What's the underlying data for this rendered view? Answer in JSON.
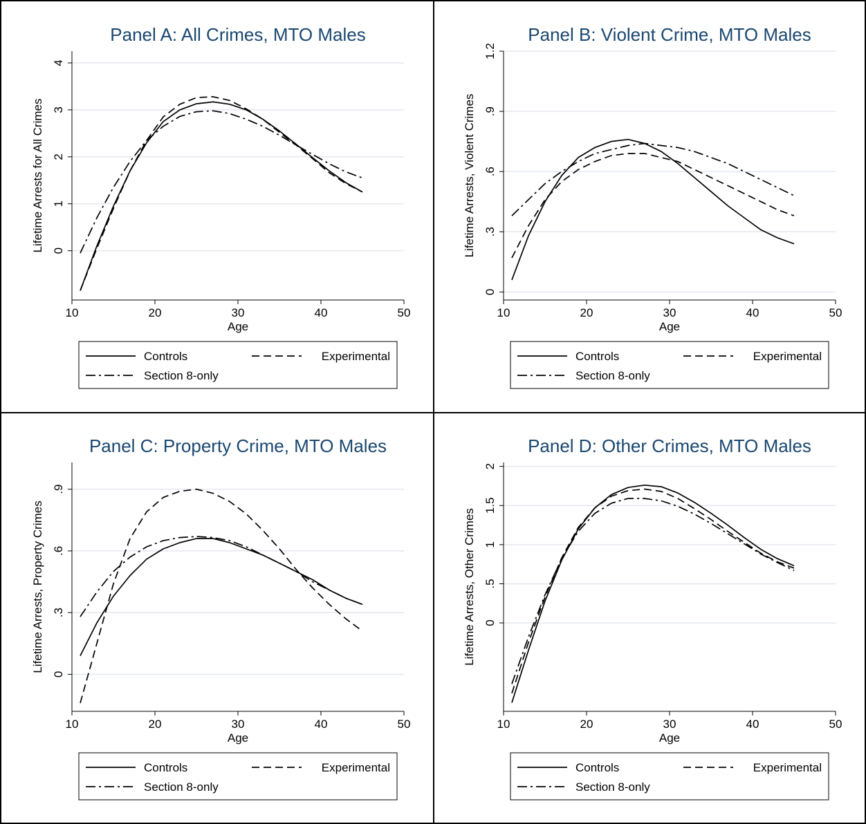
{
  "legend": {
    "series": [
      "Controls",
      "Experimental",
      "Section 8-only"
    ]
  },
  "line_styles": {
    "Controls": "solid",
    "Experimental": "dash",
    "Section 8-only": "dash-dot"
  },
  "colors": {
    "title": "#1a476f",
    "gridline": "#e3e8ef",
    "lines": "#000000"
  },
  "chart_data": [
    {
      "type": "line",
      "title": "Panel A: All Crimes, MTO Males",
      "xlabel": "Age",
      "ylabel": "Lifetime Arrests for All Crimes",
      "xlim": [
        10,
        50
      ],
      "ylim": [
        -1.05,
        4.25
      ],
      "xticks": [
        10,
        20,
        30,
        40,
        50
      ],
      "yticks": [
        0,
        1,
        2,
        3,
        4
      ],
      "yticklabels": [
        "0",
        "1",
        "2",
        "3",
        "4"
      ],
      "grid": true,
      "legend_position": "bottom",
      "series": [
        {
          "name": "Controls",
          "x": [
            11,
            13,
            15,
            17,
            19,
            21,
            23,
            25,
            27,
            29,
            31,
            33,
            35,
            37,
            39,
            41,
            43,
            45
          ],
          "y": [
            -0.85,
            0.1,
            0.95,
            1.7,
            2.3,
            2.75,
            3.0,
            3.13,
            3.17,
            3.12,
            3.0,
            2.8,
            2.55,
            2.27,
            1.98,
            1.7,
            1.45,
            1.25
          ]
        },
        {
          "name": "Experimental",
          "x": [
            11,
            13,
            15,
            17,
            19,
            21,
            23,
            25,
            27,
            29,
            31,
            33,
            35,
            37,
            39,
            41,
            43,
            45
          ],
          "y": [
            -0.85,
            0.05,
            0.9,
            1.7,
            2.35,
            2.85,
            3.12,
            3.26,
            3.28,
            3.2,
            3.02,
            2.8,
            2.52,
            2.25,
            1.96,
            1.66,
            1.43,
            1.25
          ]
        },
        {
          "name": "Section 8-only",
          "x": [
            11,
            13,
            15,
            17,
            19,
            21,
            23,
            25,
            27,
            29,
            31,
            33,
            35,
            37,
            39,
            41,
            43,
            45
          ],
          "y": [
            -0.05,
            0.7,
            1.35,
            1.9,
            2.35,
            2.65,
            2.86,
            2.96,
            2.98,
            2.92,
            2.8,
            2.65,
            2.46,
            2.25,
            2.05,
            1.85,
            1.68,
            1.55
          ]
        }
      ]
    },
    {
      "type": "line",
      "title": "Panel B: Violent Crime, MTO Males",
      "xlabel": "Age",
      "ylabel": "Lifetime Arrests,  Violent Crimes",
      "xlim": [
        10,
        50
      ],
      "ylim": [
        -0.04,
        1.2
      ],
      "xticks": [
        10,
        20,
        30,
        40,
        50
      ],
      "yticks": [
        0,
        0.3,
        0.6,
        0.9,
        1.2
      ],
      "yticklabels": [
        "0",
        ".3",
        ".6",
        ".9",
        "1.2"
      ],
      "grid": true,
      "legend_position": "bottom",
      "series": [
        {
          "name": "Controls",
          "x": [
            11,
            13,
            15,
            17,
            19,
            21,
            23,
            25,
            27,
            29,
            31,
            33,
            35,
            37,
            39,
            41,
            43,
            45
          ],
          "y": [
            0.06,
            0.28,
            0.45,
            0.58,
            0.67,
            0.72,
            0.75,
            0.76,
            0.74,
            0.7,
            0.64,
            0.57,
            0.5,
            0.43,
            0.37,
            0.31,
            0.27,
            0.24
          ]
        },
        {
          "name": "Experimental",
          "x": [
            11,
            13,
            15,
            17,
            19,
            21,
            23,
            25,
            27,
            29,
            31,
            33,
            35,
            37,
            39,
            41,
            43,
            45
          ],
          "y": [
            0.17,
            0.33,
            0.46,
            0.55,
            0.61,
            0.65,
            0.68,
            0.69,
            0.69,
            0.67,
            0.65,
            0.61,
            0.57,
            0.53,
            0.49,
            0.45,
            0.41,
            0.38
          ]
        },
        {
          "name": "Section 8-only",
          "x": [
            11,
            13,
            15,
            17,
            19,
            21,
            23,
            25,
            27,
            29,
            31,
            33,
            35,
            37,
            39,
            41,
            43,
            45
          ],
          "y": [
            0.38,
            0.46,
            0.54,
            0.6,
            0.65,
            0.69,
            0.71,
            0.73,
            0.74,
            0.73,
            0.72,
            0.7,
            0.67,
            0.64,
            0.6,
            0.56,
            0.52,
            0.48
          ]
        }
      ]
    },
    {
      "type": "line",
      "title": "Panel C: Property Crime, MTO Males",
      "xlabel": "Age",
      "ylabel": "Lifetime Arrests,  Property Crimes",
      "xlim": [
        10,
        50
      ],
      "ylim": [
        -0.18,
        1.03
      ],
      "xticks": [
        10,
        20,
        30,
        40,
        50
      ],
      "yticks": [
        0,
        0.3,
        0.6,
        0.9
      ],
      "yticklabels": [
        "0",
        ".3",
        ".6",
        ".9"
      ],
      "grid": true,
      "legend_position": "bottom",
      "series": [
        {
          "name": "Controls",
          "x": [
            11,
            13,
            15,
            17,
            19,
            21,
            23,
            25,
            27,
            29,
            31,
            33,
            35,
            37,
            39,
            41,
            43,
            45
          ],
          "y": [
            0.09,
            0.25,
            0.38,
            0.48,
            0.56,
            0.61,
            0.64,
            0.66,
            0.66,
            0.64,
            0.61,
            0.58,
            0.54,
            0.5,
            0.46,
            0.41,
            0.37,
            0.34
          ]
        },
        {
          "name": "Experimental",
          "x": [
            11,
            13,
            15,
            17,
            19,
            21,
            23,
            25,
            27,
            29,
            31,
            33,
            35,
            37,
            39,
            41,
            43,
            45
          ],
          "y": [
            -0.14,
            0.15,
            0.44,
            0.66,
            0.79,
            0.86,
            0.89,
            0.9,
            0.88,
            0.84,
            0.78,
            0.7,
            0.61,
            0.51,
            0.42,
            0.34,
            0.27,
            0.21
          ]
        },
        {
          "name": "Section 8-only",
          "x": [
            11,
            13,
            15,
            17,
            19,
            21,
            23,
            25,
            27,
            29,
            31,
            33,
            35,
            37,
            39,
            41,
            43,
            45
          ],
          "y": [
            0.28,
            0.4,
            0.5,
            0.57,
            0.62,
            0.65,
            0.665,
            0.67,
            0.665,
            0.65,
            0.62,
            0.58,
            0.54,
            0.5,
            0.45,
            0.41,
            0.37,
            0.34
          ]
        }
      ]
    },
    {
      "type": "line",
      "title": "Panel D: Other Crimes, MTO Males",
      "xlabel": "Age",
      "ylabel": "Lifetime Arrests,  Other Crimes",
      "xlim": [
        10,
        50
      ],
      "ylim": [
        -1.13,
        2.05
      ],
      "xticks": [
        10,
        20,
        30,
        40,
        50
      ],
      "yticks": [
        0,
        0.5,
        1,
        1.5,
        2
      ],
      "yticklabels": [
        "0",
        ".5",
        "1",
        "1.5",
        "2"
      ],
      "grid": true,
      "legend_position": "bottom",
      "series": [
        {
          "name": "Controls",
          "x": [
            11,
            13,
            15,
            17,
            19,
            21,
            23,
            25,
            27,
            29,
            31,
            33,
            35,
            37,
            39,
            41,
            43,
            45
          ],
          "y": [
            -1.02,
            -0.35,
            0.28,
            0.8,
            1.2,
            1.47,
            1.64,
            1.73,
            1.76,
            1.74,
            1.66,
            1.54,
            1.4,
            1.25,
            1.09,
            0.94,
            0.82,
            0.73
          ]
        },
        {
          "name": "Experimental",
          "x": [
            11,
            13,
            15,
            17,
            19,
            21,
            23,
            25,
            27,
            29,
            31,
            33,
            35,
            37,
            39,
            41,
            43,
            45
          ],
          "y": [
            -0.9,
            -0.25,
            0.33,
            0.83,
            1.22,
            1.47,
            1.62,
            1.69,
            1.71,
            1.68,
            1.59,
            1.46,
            1.32,
            1.17,
            1.03,
            0.89,
            0.78,
            0.7
          ]
        },
        {
          "name": "Section 8-only",
          "x": [
            11,
            13,
            15,
            17,
            19,
            21,
            23,
            25,
            27,
            29,
            31,
            33,
            35,
            37,
            39,
            41,
            43,
            45
          ],
          "y": [
            -0.78,
            -0.18,
            0.36,
            0.82,
            1.17,
            1.4,
            1.53,
            1.59,
            1.59,
            1.56,
            1.49,
            1.39,
            1.27,
            1.14,
            1.01,
            0.88,
            0.77,
            0.67
          ]
        }
      ]
    }
  ]
}
